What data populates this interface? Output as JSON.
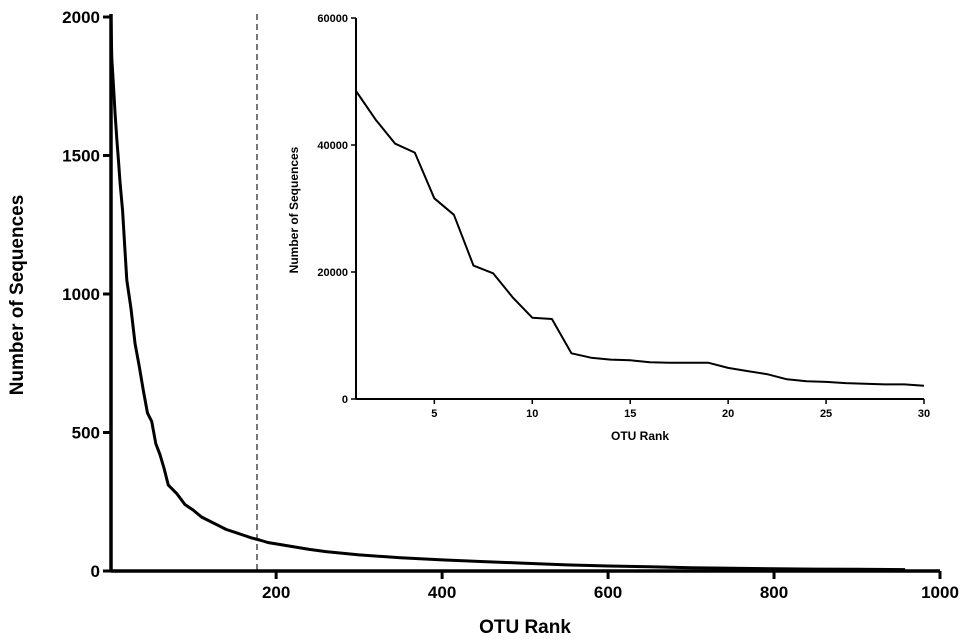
{
  "chart_data": [
    {
      "type": "line",
      "xlabel": "OTU Rank",
      "ylabel": "Number of Sequences",
      "xlim": [
        1,
        1000
      ],
      "ylim": [
        0,
        2000
      ],
      "x_ticks": [
        "200",
        "400",
        "600",
        "800",
        "1000"
      ],
      "y_ticks": [
        "0",
        "500",
        "1000",
        "1500",
        "2000"
      ],
      "reference_line": {
        "x": 200,
        "style": "dashed",
        "color": "#777777"
      },
      "grid": false,
      "series": [
        {
          "x": [
            1,
            2,
            4,
            6,
            8,
            10,
            12,
            15,
            18,
            20,
            25,
            30,
            35,
            40,
            45,
            50,
            55,
            60,
            65,
            70,
            80,
            90,
            100,
            110,
            120,
            130,
            140,
            150,
            160,
            170,
            180,
            190,
            200,
            220,
            240,
            260,
            280,
            300,
            350,
            400,
            450,
            500,
            550,
            600,
            650,
            700,
            750,
            800,
            850,
            900,
            958
          ],
          "y": [
            1990,
            1850,
            1750,
            1650,
            1560,
            1480,
            1400,
            1300,
            1150,
            1050,
            950,
            820,
            740,
            650,
            570,
            540,
            460,
            420,
            370,
            310,
            280,
            240,
            220,
            195,
            180,
            165,
            150,
            140,
            130,
            120,
            112,
            103,
            98,
            88,
            78,
            70,
            64,
            58,
            48,
            40,
            34,
            28,
            22,
            18,
            15,
            12,
            10,
            8,
            7,
            6,
            5
          ]
        }
      ]
    },
    {
      "type": "line",
      "xlabel": "OTU Rank",
      "ylabel": "Number of Sequences",
      "xlim": [
        1,
        30
      ],
      "ylim": [
        0,
        60000
      ],
      "x_ticks": [
        "5",
        "10",
        "15",
        "20",
        "25",
        "30"
      ],
      "y_ticks": [
        "0",
        "20000",
        "40000",
        "60000"
      ],
      "grid": false,
      "series": [
        {
          "x": [
            1,
            2,
            3,
            4,
            5,
            6,
            7,
            8,
            9,
            10,
            11,
            12,
            13,
            14,
            15,
            16,
            17,
            18,
            19,
            20,
            21,
            22,
            23,
            24,
            25,
            26,
            27,
            28,
            29,
            30
          ],
          "y": [
            48500,
            44000,
            40200,
            38800,
            31600,
            29000,
            21000,
            19800,
            16000,
            12800,
            12600,
            7200,
            6500,
            6200,
            6100,
            5800,
            5700,
            5700,
            5700,
            4900,
            4400,
            3900,
            3100,
            2800,
            2700,
            2500,
            2400,
            2300,
            2300,
            2100
          ]
        }
      ]
    }
  ]
}
